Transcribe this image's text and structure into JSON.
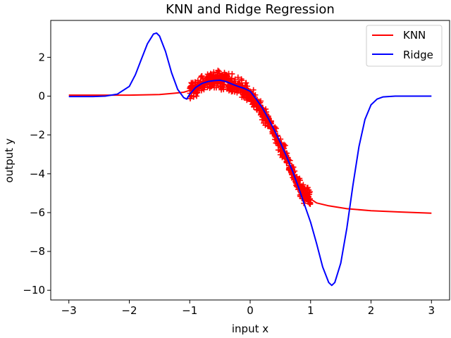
{
  "chart_data": {
    "type": "line",
    "title": "KNN and Ridge Regression",
    "xlabel": "input x",
    "ylabel": "output y",
    "xlim": [
      -3.3,
      3.3
    ],
    "ylim": [
      -10.5,
      3.9
    ],
    "xticks": [
      -3,
      -2,
      -1,
      0,
      1,
      2,
      3
    ],
    "xtick_labels": [
      "−3",
      "−2",
      "−1",
      "0",
      "1",
      "2",
      "3"
    ],
    "yticks": [
      2,
      0,
      -2,
      -4,
      -6,
      -8,
      -10
    ],
    "ytick_labels": [
      "2",
      "0",
      "−2",
      "−4",
      "−6",
      "−8",
      "−10"
    ],
    "grid": false,
    "legend_position": "top-right",
    "series": [
      {
        "name": "KNN",
        "color": "#ff0000",
        "x": [
          -3.0,
          -2.5,
          -2.0,
          -1.5,
          -1.25,
          -1.1,
          -1.0,
          -0.9,
          -0.8,
          -0.7,
          -0.6,
          -0.5,
          -0.4,
          -0.3,
          -0.2,
          -0.1,
          0.0,
          0.1,
          0.2,
          0.3,
          0.4,
          0.5,
          0.6,
          0.7,
          0.8,
          0.9,
          1.0,
          1.1,
          1.3,
          1.6,
          2.0,
          2.5,
          3.0
        ],
        "y": [
          0.05,
          0.05,
          0.05,
          0.08,
          0.15,
          0.2,
          0.3,
          0.45,
          0.6,
          0.7,
          0.8,
          0.82,
          0.75,
          0.6,
          0.45,
          0.3,
          0.0,
          -0.35,
          -0.8,
          -1.3,
          -1.9,
          -2.5,
          -3.15,
          -3.85,
          -4.55,
          -5.05,
          -5.3,
          -5.5,
          -5.65,
          -5.8,
          -5.9,
          -5.97,
          -6.03
        ]
      },
      {
        "name": "Ridge",
        "color": "#0000ff",
        "x": [
          -3.0,
          -2.6,
          -2.4,
          -2.2,
          -2.0,
          -1.9,
          -1.8,
          -1.7,
          -1.6,
          -1.55,
          -1.5,
          -1.4,
          -1.3,
          -1.2,
          -1.1,
          -1.05,
          -1.0,
          -0.9,
          -0.8,
          -0.7,
          -0.6,
          -0.5,
          -0.4,
          -0.3,
          -0.2,
          -0.1,
          0.0,
          0.1,
          0.2,
          0.3,
          0.4,
          0.5,
          0.6,
          0.7,
          0.8,
          0.9,
          1.0,
          1.1,
          1.2,
          1.3,
          1.35,
          1.4,
          1.5,
          1.6,
          1.7,
          1.8,
          1.9,
          2.0,
          2.1,
          2.2,
          2.4,
          2.6,
          3.0
        ],
        "y": [
          -0.02,
          -0.02,
          0.0,
          0.1,
          0.5,
          1.1,
          1.9,
          2.7,
          3.2,
          3.25,
          3.1,
          2.3,
          1.2,
          0.35,
          -0.08,
          -0.15,
          0.1,
          0.45,
          0.65,
          0.75,
          0.8,
          0.82,
          0.75,
          0.62,
          0.5,
          0.4,
          0.25,
          -0.15,
          -0.6,
          -1.15,
          -1.75,
          -2.4,
          -3.1,
          -3.85,
          -4.7,
          -5.6,
          -6.5,
          -7.6,
          -8.8,
          -9.6,
          -9.75,
          -9.6,
          -8.6,
          -6.8,
          -4.6,
          -2.6,
          -1.2,
          -0.45,
          -0.15,
          -0.04,
          0.0,
          0.0,
          0.0
        ]
      }
    ],
    "scatter": {
      "name": "data",
      "color": "#ff0000",
      "marker": "+",
      "x_range": [
        -1.0,
        1.0
      ],
      "y_trend": "follows the KNN curve over x in [-1, 1], with spread of about ±0.5"
    }
  }
}
